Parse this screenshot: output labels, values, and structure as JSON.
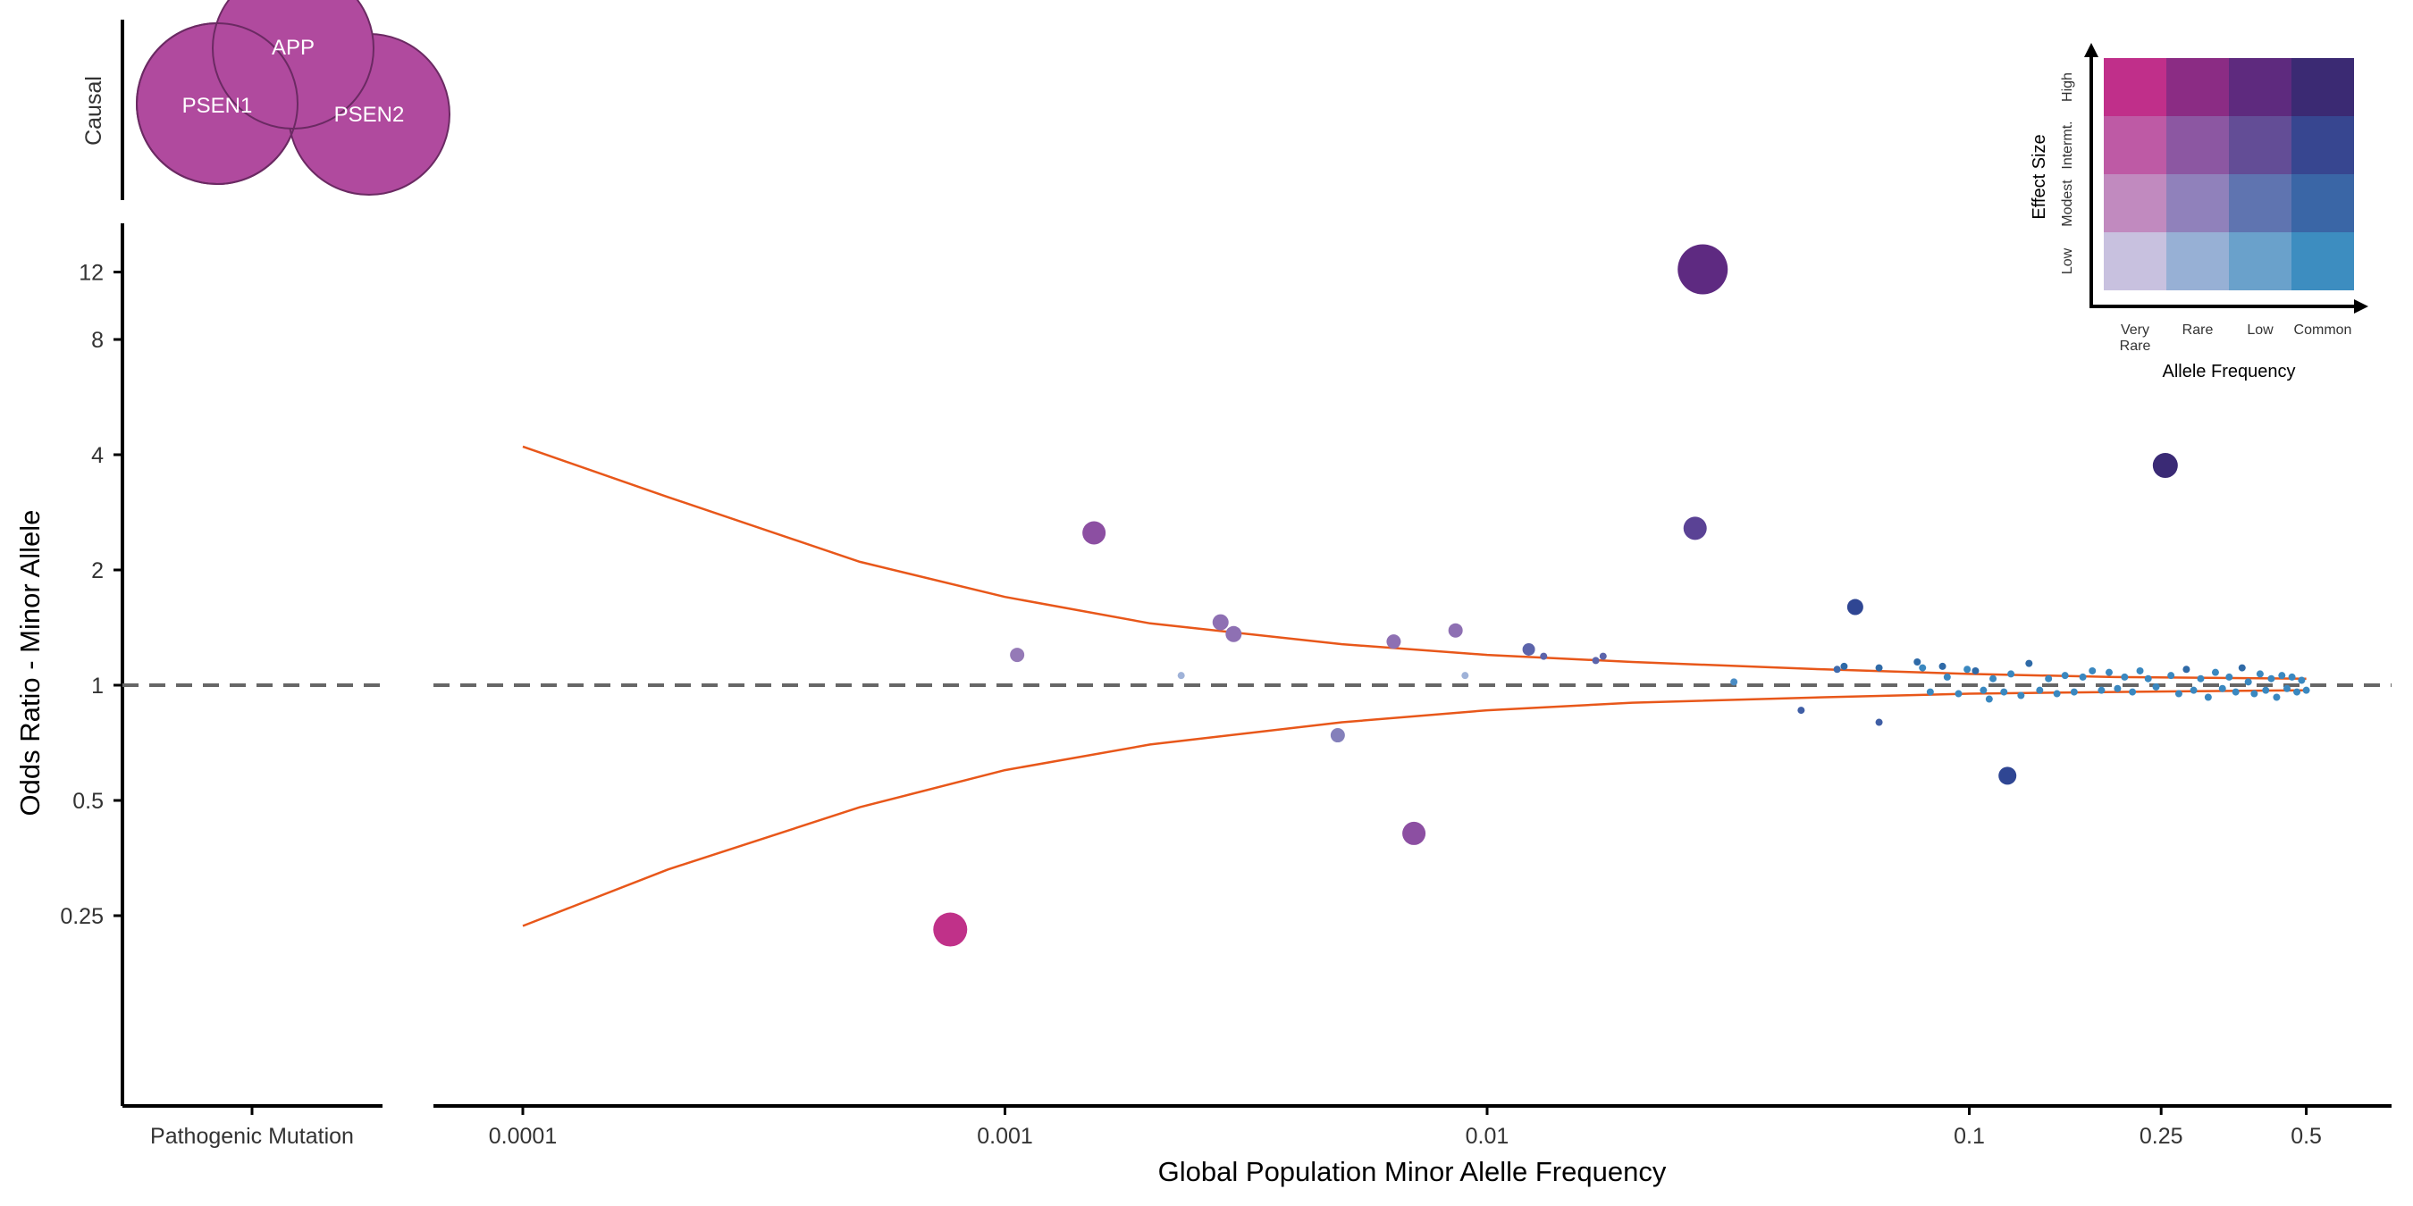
{
  "chart_data": {
    "type": "scatter",
    "title": "",
    "xlabel": "Global Population Minor Alelle Frequency",
    "ylabel": "Odds Ratio - Minor Allele",
    "x_scale": "log10",
    "y_scale": "log2",
    "xlim": [
      7e-05,
      0.7
    ],
    "ylim": [
      0.0625,
      16
    ],
    "x_ticks": [
      {
        "value": 0.0001,
        "label": "0.0001"
      },
      {
        "value": 0.001,
        "label": "0.001"
      },
      {
        "value": 0.01,
        "label": "0.01"
      },
      {
        "value": 0.1,
        "label": "0.1"
      },
      {
        "value": 0.25,
        "label": "0.25"
      },
      {
        "value": 0.5,
        "label": "0.5"
      }
    ],
    "y_ticks": [
      {
        "value": 0.25,
        "label": "0.25"
      },
      {
        "value": 0.5,
        "label": "0.5"
      },
      {
        "value": 1,
        "label": "1"
      },
      {
        "value": 2,
        "label": "2"
      },
      {
        "value": 4,
        "label": "4"
      },
      {
        "value": 8,
        "label": "8"
      },
      {
        "value": 12,
        "label": "12"
      }
    ],
    "reference_line": {
      "y": 1,
      "style": "dashed",
      "color": "#666666"
    },
    "threshold_curves": {
      "color": "#e8571a",
      "upper": [
        [
          0.0001,
          4.2
        ],
        [
          0.0002,
          3.1
        ],
        [
          0.0005,
          2.1
        ],
        [
          0.001,
          1.7
        ],
        [
          0.002,
          1.45
        ],
        [
          0.005,
          1.28
        ],
        [
          0.01,
          1.2
        ],
        [
          0.02,
          1.15
        ],
        [
          0.05,
          1.1
        ],
        [
          0.1,
          1.07
        ],
        [
          0.2,
          1.05
        ],
        [
          0.5,
          1.04
        ]
      ],
      "lower": [
        [
          0.0001,
          0.235
        ],
        [
          0.0002,
          0.33
        ],
        [
          0.0005,
          0.48
        ],
        [
          0.001,
          0.6
        ],
        [
          0.002,
          0.7
        ],
        [
          0.005,
          0.8
        ],
        [
          0.01,
          0.86
        ],
        [
          0.02,
          0.9
        ],
        [
          0.05,
          0.93
        ],
        [
          0.1,
          0.95
        ],
        [
          0.2,
          0.96
        ],
        [
          0.5,
          0.97
        ]
      ]
    },
    "points": [
      {
        "x": 0.00077,
        "y": 0.23,
        "color": "#c03189",
        "size": 19
      },
      {
        "x": 0.00153,
        "y": 2.5,
        "color": "#8c4fa2",
        "size": 13
      },
      {
        "x": 0.00106,
        "y": 1.2,
        "color": "#957ab7",
        "size": 8
      },
      {
        "x": 0.0028,
        "y": 1.46,
        "color": "#8e70b3",
        "size": 9
      },
      {
        "x": 0.00298,
        "y": 1.36,
        "color": "#8e70b3",
        "size": 9
      },
      {
        "x": 0.00232,
        "y": 1.06,
        "color": "#9fb2d8",
        "size": 4
      },
      {
        "x": 0.0049,
        "y": 0.74,
        "color": "#8480bb",
        "size": 8
      },
      {
        "x": 0.0064,
        "y": 1.3,
        "color": "#8e70b3",
        "size": 8
      },
      {
        "x": 0.00705,
        "y": 0.41,
        "color": "#8c4fa2",
        "size": 13
      },
      {
        "x": 0.0086,
        "y": 1.39,
        "color": "#8e70b3",
        "size": 8
      },
      {
        "x": 0.009,
        "y": 1.06,
        "color": "#9fb2d8",
        "size": 4
      },
      {
        "x": 0.0122,
        "y": 1.24,
        "color": "#5c64ab",
        "size": 7
      },
      {
        "x": 0.0131,
        "y": 1.19,
        "color": "#5c64ab",
        "size": 4
      },
      {
        "x": 0.0168,
        "y": 1.16,
        "color": "#5c64ab",
        "size": 4
      },
      {
        "x": 0.0174,
        "y": 1.19,
        "color": "#5c64ab",
        "size": 4
      },
      {
        "x": 0.028,
        "y": 12.2,
        "color": "#5e2a81",
        "size": 28
      },
      {
        "x": 0.027,
        "y": 2.57,
        "color": "#5a4295",
        "size": 13
      },
      {
        "x": 0.0325,
        "y": 1.02,
        "color": "#4a8cc4",
        "size": 4
      },
      {
        "x": 0.0448,
        "y": 0.86,
        "color": "#3f5ea5",
        "size": 4
      },
      {
        "x": 0.058,
        "y": 1.6,
        "color": "#2f4693",
        "size": 9
      },
      {
        "x": 0.0532,
        "y": 1.1,
        "color": "#3f6aab",
        "size": 4
      },
      {
        "x": 0.065,
        "y": 0.8,
        "color": "#3f5ea5",
        "size": 4
      },
      {
        "x": 0.12,
        "y": 0.58,
        "color": "#2f4693",
        "size": 10
      },
      {
        "x": 0.255,
        "y": 3.75,
        "color": "#3a2a75",
        "size": 14
      },
      {
        "x": 0.055,
        "y": 1.12,
        "color": "#2f6aa7",
        "size": 4
      },
      {
        "x": 0.065,
        "y": 1.11,
        "color": "#2f6aa7",
        "size": 4
      },
      {
        "x": 0.078,
        "y": 1.15,
        "color": "#2f6aa7",
        "size": 4
      },
      {
        "x": 0.08,
        "y": 1.11,
        "color": "#3a88c0",
        "size": 4
      },
      {
        "x": 0.083,
        "y": 0.96,
        "color": "#3a88c0",
        "size": 4
      },
      {
        "x": 0.088,
        "y": 1.12,
        "color": "#2f6aa7",
        "size": 4
      },
      {
        "x": 0.09,
        "y": 1.05,
        "color": "#3a88c0",
        "size": 4
      },
      {
        "x": 0.095,
        "y": 0.95,
        "color": "#3a88c0",
        "size": 4
      },
      {
        "x": 0.099,
        "y": 1.1,
        "color": "#3a88c0",
        "size": 4
      },
      {
        "x": 0.103,
        "y": 1.09,
        "color": "#2f6aa7",
        "size": 4
      },
      {
        "x": 0.107,
        "y": 0.97,
        "color": "#3a88c0",
        "size": 4
      },
      {
        "x": 0.11,
        "y": 0.92,
        "color": "#3a88c0",
        "size": 4
      },
      {
        "x": 0.112,
        "y": 1.04,
        "color": "#3a88c0",
        "size": 4
      },
      {
        "x": 0.118,
        "y": 0.96,
        "color": "#3a88c0",
        "size": 4
      },
      {
        "x": 0.122,
        "y": 1.07,
        "color": "#3a88c0",
        "size": 4
      },
      {
        "x": 0.128,
        "y": 0.94,
        "color": "#3a88c0",
        "size": 4
      },
      {
        "x": 0.133,
        "y": 1.14,
        "color": "#2f6aa7",
        "size": 4
      },
      {
        "x": 0.14,
        "y": 0.97,
        "color": "#3a88c0",
        "size": 4
      },
      {
        "x": 0.146,
        "y": 1.04,
        "color": "#3a88c0",
        "size": 4
      },
      {
        "x": 0.152,
        "y": 0.95,
        "color": "#3a88c0",
        "size": 4
      },
      {
        "x": 0.158,
        "y": 1.06,
        "color": "#3a88c0",
        "size": 4
      },
      {
        "x": 0.165,
        "y": 0.96,
        "color": "#3a88c0",
        "size": 4
      },
      {
        "x": 0.172,
        "y": 1.05,
        "color": "#3a88c0",
        "size": 4
      },
      {
        "x": 0.18,
        "y": 1.09,
        "color": "#3a88c0",
        "size": 4
      },
      {
        "x": 0.188,
        "y": 0.97,
        "color": "#3a88c0",
        "size": 4
      },
      {
        "x": 0.195,
        "y": 1.08,
        "color": "#3a88c0",
        "size": 4
      },
      {
        "x": 0.203,
        "y": 0.98,
        "color": "#3a88c0",
        "size": 4
      },
      {
        "x": 0.21,
        "y": 1.05,
        "color": "#3a88c0",
        "size": 4
      },
      {
        "x": 0.218,
        "y": 0.96,
        "color": "#3a88c0",
        "size": 4
      },
      {
        "x": 0.226,
        "y": 1.09,
        "color": "#3a88c0",
        "size": 4
      },
      {
        "x": 0.235,
        "y": 1.04,
        "color": "#3a88c0",
        "size": 4
      },
      {
        "x": 0.244,
        "y": 0.99,
        "color": "#3a88c0",
        "size": 4
      },
      {
        "x": 0.262,
        "y": 1.06,
        "color": "#3a88c0",
        "size": 4
      },
      {
        "x": 0.272,
        "y": 0.95,
        "color": "#3a88c0",
        "size": 4
      },
      {
        "x": 0.282,
        "y": 1.1,
        "color": "#2f6aa7",
        "size": 4
      },
      {
        "x": 0.292,
        "y": 0.97,
        "color": "#3a88c0",
        "size": 4
      },
      {
        "x": 0.302,
        "y": 1.04,
        "color": "#3a88c0",
        "size": 4
      },
      {
        "x": 0.313,
        "y": 0.93,
        "color": "#3a88c0",
        "size": 4
      },
      {
        "x": 0.324,
        "y": 1.08,
        "color": "#3a88c0",
        "size": 4
      },
      {
        "x": 0.335,
        "y": 0.98,
        "color": "#3a88c0",
        "size": 4
      },
      {
        "x": 0.346,
        "y": 1.05,
        "color": "#3a88c0",
        "size": 4
      },
      {
        "x": 0.357,
        "y": 0.96,
        "color": "#3a88c0",
        "size": 4
      },
      {
        "x": 0.368,
        "y": 1.11,
        "color": "#2f6aa7",
        "size": 4
      },
      {
        "x": 0.379,
        "y": 1.02,
        "color": "#3a88c0",
        "size": 4
      },
      {
        "x": 0.39,
        "y": 0.95,
        "color": "#3a88c0",
        "size": 4
      },
      {
        "x": 0.401,
        "y": 1.07,
        "color": "#3a88c0",
        "size": 4
      },
      {
        "x": 0.412,
        "y": 0.97,
        "color": "#3a88c0",
        "size": 4
      },
      {
        "x": 0.423,
        "y": 1.04,
        "color": "#3a88c0",
        "size": 4
      },
      {
        "x": 0.434,
        "y": 0.93,
        "color": "#3a88c0",
        "size": 4
      },
      {
        "x": 0.445,
        "y": 1.06,
        "color": "#3a88c0",
        "size": 4
      },
      {
        "x": 0.456,
        "y": 0.98,
        "color": "#3a88c0",
        "size": 4
      },
      {
        "x": 0.467,
        "y": 1.05,
        "color": "#3a88c0",
        "size": 4
      },
      {
        "x": 0.478,
        "y": 0.96,
        "color": "#3a88c0",
        "size": 4
      },
      {
        "x": 0.489,
        "y": 1.03,
        "color": "#3a88c0",
        "size": 4
      },
      {
        "x": 0.5,
        "y": 0.97,
        "color": "#3a88c0",
        "size": 4
      }
    ],
    "left_panel": {
      "x_label": "Pathogenic Mutation"
    },
    "top_panel": {
      "y_label": "Causal",
      "genes": [
        "APP",
        "PSEN1",
        "PSEN2"
      ],
      "color": "#b04a9e"
    },
    "legend": {
      "position": "top-right",
      "x_title": "Allele Frequency",
      "y_title": "Effect Size",
      "x_labels": [
        "Very\nRare",
        "Rare",
        "Low",
        "Common"
      ],
      "y_labels": [
        "Low",
        "Modest",
        "Intermt.",
        "High"
      ],
      "grid_colors": [
        [
          "#c8c1df",
          "#97b0d5",
          "#6aa1cb",
          "#3d8dc0"
        ],
        [
          "#c18abf",
          "#9081bb",
          "#5f74b0",
          "#3a66a6"
        ],
        [
          "#be5aa5",
          "#8c57a2",
          "#634d96",
          "#374690"
        ],
        [
          "#c02f8a",
          "#8b2c84",
          "#5e2a7e",
          "#3b2a73"
        ]
      ]
    }
  }
}
